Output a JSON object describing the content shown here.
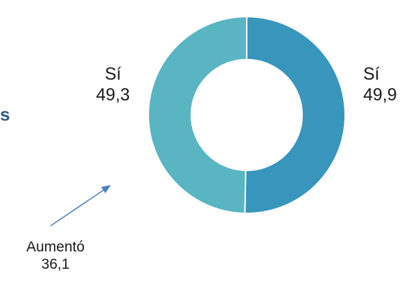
{
  "chart_data": {
    "type": "pie",
    "variant": "donut",
    "slices": [
      {
        "label": "Sí",
        "value": 49.9,
        "display": "49,9",
        "color": "#3895bc"
      },
      {
        "label": "Sí",
        "value": 49.3,
        "display": "49,3",
        "color": "#5ab5c2"
      }
    ],
    "annotation": {
      "label": "Aumentó",
      "value": 36.1,
      "display": "36,1"
    },
    "partial_text": {
      "left_fragment": "s"
    },
    "colors": {
      "slice_right": "#3895bc",
      "slice_left": "#5ab5c2",
      "arrow": "#4f7fbf",
      "fragment_text": "#2e5a8e",
      "separator": "#ffffff"
    }
  }
}
